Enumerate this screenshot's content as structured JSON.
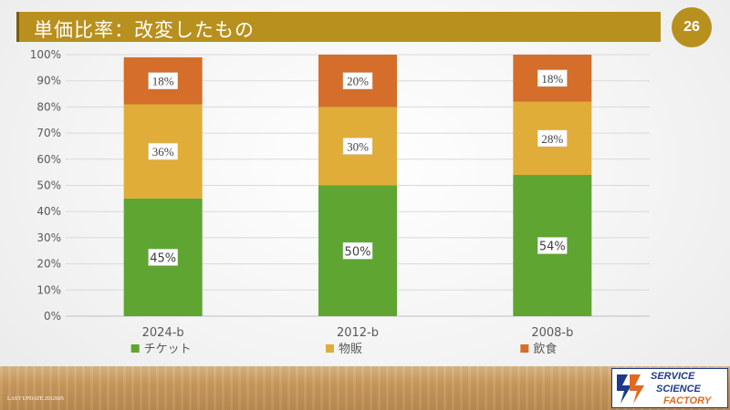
{
  "header": {
    "title": "単価比率：改変したもの",
    "page_number": "26"
  },
  "footer": {
    "last_update": "LAST UPDATE 2012605",
    "logo_lines": [
      "SERVICE",
      "SCIENCE",
      "FACTORY"
    ]
  },
  "colors": {
    "accent": "#b8901e",
    "ticket": "#5ea532",
    "goods": "#dfad38",
    "food": "#d46e2a"
  },
  "chart_data": {
    "type": "bar",
    "stacked": true,
    "categories": [
      "2024-b",
      "2012-b",
      "2008-b"
    ],
    "series": [
      {
        "name": "チケット",
        "values": [
          45,
          50,
          54
        ],
        "labels": [
          "45%",
          "50%",
          "54%"
        ],
        "color": "#5ea532"
      },
      {
        "name": "物販",
        "values": [
          36,
          30,
          28
        ],
        "labels": [
          "36%",
          "30%",
          "28%"
        ],
        "color": "#dfad38"
      },
      {
        "name": "飲食",
        "values": [
          18,
          20,
          18
        ],
        "labels": [
          "18%",
          "20%",
          "18%"
        ],
        "color": "#d46e2a"
      }
    ],
    "yticks": [
      "0%",
      "10%",
      "20%",
      "30%",
      "40%",
      "50%",
      "60%",
      "70%",
      "80%",
      "90%",
      "100%"
    ],
    "ylim": [
      0,
      100
    ],
    "grid": true,
    "legend_position": "bottom"
  }
}
